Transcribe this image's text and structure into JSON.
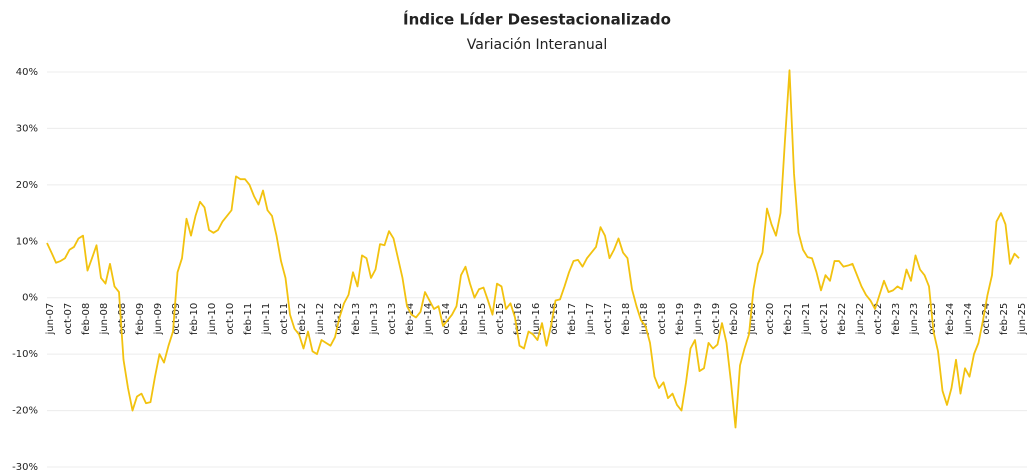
{
  "chart_data": {
    "type": "line",
    "title": "Índice Líder Desestacionalizado",
    "subtitle": "Variación Interanual",
    "categories": [
      "jun-07",
      null,
      null,
      null,
      "oct-07",
      null,
      null,
      null,
      "feb-08",
      null,
      null,
      null,
      "jun-08",
      null,
      null,
      null,
      "oct-08",
      null,
      null,
      null,
      "feb-09",
      null,
      null,
      null,
      "jun-09",
      null,
      null,
      null,
      "oct-09",
      null,
      null,
      null,
      "feb-10",
      null,
      null,
      null,
      "jun-10",
      null,
      null,
      null,
      "oct-10",
      null,
      null,
      null,
      "feb-11",
      null,
      null,
      null,
      "jun-11",
      null,
      null,
      null,
      "oct-11",
      null,
      null,
      null,
      "feb-12",
      null,
      null,
      null,
      "jun-12",
      null,
      null,
      null,
      "oct-12",
      null,
      null,
      null,
      "feb-13",
      null,
      null,
      null,
      "jun-13",
      null,
      null,
      null,
      "oct-13",
      null,
      null,
      null,
      "feb-14",
      null,
      null,
      null,
      "jun-14",
      null,
      null,
      null,
      "oct-14",
      null,
      null,
      null,
      "feb-15",
      null,
      null,
      null,
      "jun-15",
      null,
      null,
      null,
      "oct-15",
      null,
      null,
      null,
      "feb-16",
      null,
      null,
      null,
      "jun-16",
      null,
      null,
      null,
      "oct-16",
      null,
      null,
      null,
      "feb-17",
      null,
      null,
      null,
      "jun-17",
      null,
      null,
      null,
      "oct-17",
      null,
      null,
      null,
      "feb-18",
      null,
      null,
      null,
      "jun-18",
      null,
      null,
      null,
      "oct-18",
      null,
      null,
      null,
      "feb-19",
      null,
      null,
      null,
      "jun-19",
      null,
      null,
      null,
      "oct-19",
      null,
      null,
      null,
      "feb-20",
      null,
      null,
      null,
      "jun-20",
      null,
      null,
      null,
      "oct-20",
      null,
      null,
      null,
      "feb-21",
      null,
      null,
      null,
      "jun-21",
      null,
      null,
      null,
      "oct-21",
      null,
      null,
      null,
      "feb-22",
      null,
      null,
      null,
      "jun-22",
      null,
      null,
      null,
      "oct-22",
      null,
      null,
      null,
      "feb-23",
      null,
      null,
      null,
      "jun-23",
      null,
      null,
      null,
      "oct-23",
      null,
      null,
      null,
      "feb-24",
      null,
      null,
      null,
      "jun-24",
      null,
      null,
      null,
      "oct-24",
      null,
      null,
      null,
      "feb-25",
      null,
      null,
      null,
      "jun-25"
    ],
    "values": [
      9.7,
      8,
      6.2,
      6.5,
      7,
      8.5,
      9,
      10.5,
      11,
      4.8,
      7,
      9.3,
      3.5,
      2.5,
      6,
      2,
      1,
      -11,
      -16,
      -20,
      -17.5,
      -17,
      -18.7,
      -18.5,
      -14,
      -10,
      -11.5,
      -8.5,
      -6,
      4.5,
      7,
      14,
      11,
      14.5,
      17,
      16,
      12,
      11.5,
      12,
      13.5,
      14.5,
      15.5,
      21.5,
      21,
      21,
      20,
      18,
      16.5,
      19,
      15.5,
      14.5,
      11,
      6.5,
      3.5,
      -3,
      -5.5,
      -6.5,
      -9,
      -6,
      -9.5,
      -10,
      -7.5,
      -8,
      -8.5,
      -7,
      -3.5,
      -1,
      0.5,
      4.5,
      2,
      7.5,
      7,
      3.5,
      5,
      9.5,
      9.3,
      11.8,
      10.5,
      7,
      3.5,
      -1.5,
      -3,
      -3.5,
      -2.5,
      1,
      -0.5,
      -2,
      -1.5,
      -5,
      -4,
      -3,
      -1.5,
      4,
      5.5,
      2.5,
      0,
      1.5,
      1.8,
      -0.5,
      -3,
      2.5,
      2,
      -2,
      -1,
      -3.5,
      -8.5,
      -9,
      -6,
      -6.5,
      -7.5,
      -4.5,
      -8.5,
      -5,
      -0.5,
      -0.3,
      2,
      4.5,
      6.5,
      6.7,
      5.5,
      7,
      8,
      9,
      12.5,
      11,
      7,
      8.5,
      10.5,
      8,
      7,
      1.5,
      -1.5,
      -4,
      -5,
      -8,
      -14,
      -16,
      -15,
      -17.8,
      -17,
      -19,
      -20,
      -15,
      -9,
      -7.5,
      -13,
      -12.5,
      -8,
      -9,
      -8.3,
      -4.5,
      -8,
      -15,
      -23,
      -12,
      -9,
      -6.5,
      1.5,
      6,
      8,
      15.8,
      13,
      11,
      15,
      28,
      40.3,
      22,
      11.5,
      8.5,
      7.2,
      7,
      4.5,
      1.3,
      4,
      3,
      6.5,
      6.5,
      5.5,
      5.7,
      6,
      4,
      2,
      0.5,
      -0.5,
      -2,
      0.5,
      3,
      1,
      1.3,
      2,
      1.5,
      5,
      3,
      7.5,
      5,
      4,
      2,
      -6,
      -9.5,
      -16.5,
      -19,
      -16,
      -11,
      -17,
      -12.5,
      -14,
      -10,
      -8,
      -4,
      0.5,
      4,
      13.5,
      15,
      13,
      6,
      7.8,
      7
    ],
    "color": "#f2c20f",
    "ylim": [
      -30,
      40
    ],
    "yticks": [
      {
        "value": -30,
        "label": "-30%"
      },
      {
        "value": -20,
        "label": "-20%"
      },
      {
        "value": -10,
        "label": "-10%"
      },
      {
        "value": 0,
        "label": "0%"
      },
      {
        "value": 10,
        "label": "10%"
      },
      {
        "value": 20,
        "label": "20%"
      },
      {
        "value": 30,
        "label": "30%"
      },
      {
        "value": 40,
        "label": "40%"
      }
    ],
    "grid": true
  }
}
